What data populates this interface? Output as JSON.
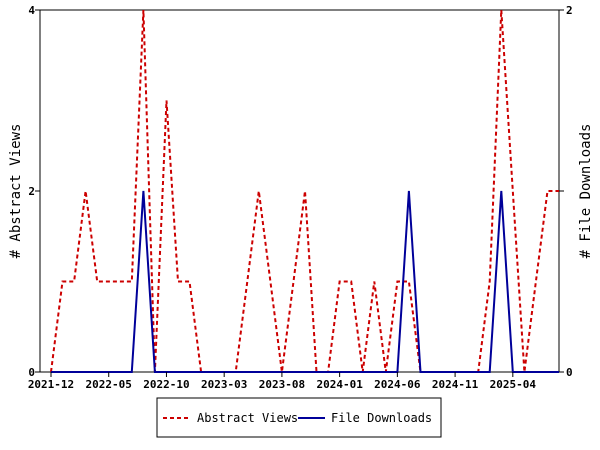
{
  "chart_data": {
    "type": "line",
    "x": [
      "2021-12",
      "2022-01",
      "2022-02",
      "2022-03",
      "2022-04",
      "2022-05",
      "2022-06",
      "2022-07",
      "2022-08",
      "2022-09",
      "2022-10",
      "2022-11",
      "2022-12",
      "2023-01",
      "2023-02",
      "2023-03",
      "2023-04",
      "2023-05",
      "2023-06",
      "2023-07",
      "2023-08",
      "2023-09",
      "2023-10",
      "2023-11",
      "2023-12",
      "2024-01",
      "2024-02",
      "2024-03",
      "2024-04",
      "2024-05",
      "2024-06",
      "2024-07",
      "2024-08",
      "2024-09",
      "2024-10",
      "2024-11",
      "2024-12",
      "2025-01",
      "2025-02",
      "2025-03",
      "2025-04",
      "2025-05",
      "2025-06",
      "2025-07",
      "2025-08"
    ],
    "x_ticks": [
      "2021-12",
      "2022-05",
      "2022-10",
      "2023-03",
      "2023-08",
      "2024-01",
      "2024-06",
      "2024-11",
      "2025-04"
    ],
    "series": [
      {
        "name": "Abstract Views",
        "axis": "left",
        "color": "#cc0000",
        "style": "dashed",
        "values": [
          0,
          1,
          1,
          2,
          1,
          1,
          1,
          1,
          4,
          0,
          3,
          1,
          1,
          0,
          0,
          0,
          0,
          1,
          2,
          1,
          0,
          1,
          2,
          0,
          0,
          1,
          1,
          0,
          1,
          0,
          1,
          1,
          0,
          0,
          0,
          0,
          0,
          0,
          1,
          4,
          2,
          0,
          1,
          2,
          2
        ]
      },
      {
        "name": "File Downloads",
        "axis": "right",
        "color": "#000099",
        "style": "solid",
        "values": [
          0,
          0,
          0,
          0,
          0,
          0,
          0,
          0,
          1,
          0,
          0,
          0,
          0,
          0,
          0,
          0,
          0,
          0,
          0,
          0,
          0,
          0,
          0,
          0,
          0,
          0,
          0,
          0,
          0,
          0,
          0,
          1,
          0,
          0,
          0,
          0,
          0,
          0,
          0,
          1,
          0,
          0,
          0,
          0,
          0
        ]
      }
    ],
    "ylabel_left": "# Abstract Views",
    "ylabel_right": "# File Downloads",
    "ylim_left": [
      0,
      4
    ],
    "ylim_right": [
      0,
      2
    ],
    "yticks_left": [
      "0",
      "2",
      "4"
    ],
    "yticks_right": [
      "0",
      "1",
      "2"
    ],
    "legend": [
      "Abstract Views",
      "File Downloads"
    ],
    "legend_position": "bottom-center",
    "grid": false
  }
}
